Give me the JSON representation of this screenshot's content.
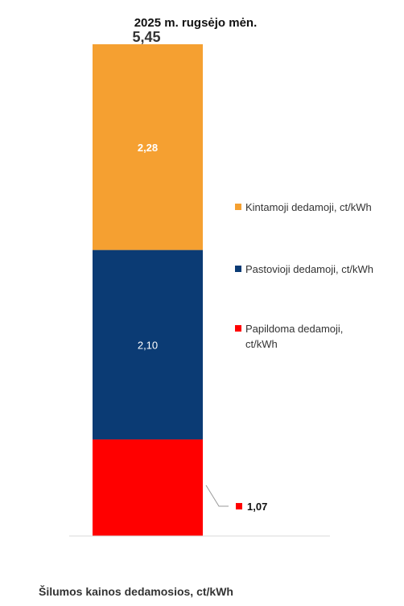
{
  "chart_data": {
    "type": "bar",
    "stacked": true,
    "title": "2025 m.  rugsėjo mėn.",
    "xlabel": "Šilumos kainos dedamosios, ct/kWh",
    "ylabel": "",
    "total_label": "5,45",
    "total": 5.45,
    "ylim": [
      0,
      5.45
    ],
    "grid": false,
    "legend_position": "right",
    "series": [
      {
        "name": "Papildoma dedamoji, ct/kWh",
        "name_lines": [
          "Papildoma dedamoji,",
          "ct/kWh"
        ],
        "value": 1.07,
        "label": "1,07",
        "color": "#ff0000"
      },
      {
        "name": "Pastovioji dedamoji, ct/kWh",
        "name_lines": [
          "Pastovioji dedamoji, ct/kWh"
        ],
        "value": 2.1,
        "label": "2,10",
        "color": "#0b3b74"
      },
      {
        "name": "Kintamoji dedamoji, ct/kWh",
        "name_lines": [
          "Kintamoji dedamoji, ct/kWh"
        ],
        "value": 2.28,
        "label": "2,28",
        "color": "#f5a031"
      }
    ],
    "legend_order": [
      2,
      1,
      0
    ],
    "callout": {
      "series_index": 0,
      "label": "1,07",
      "color": "#ff0000"
    }
  }
}
